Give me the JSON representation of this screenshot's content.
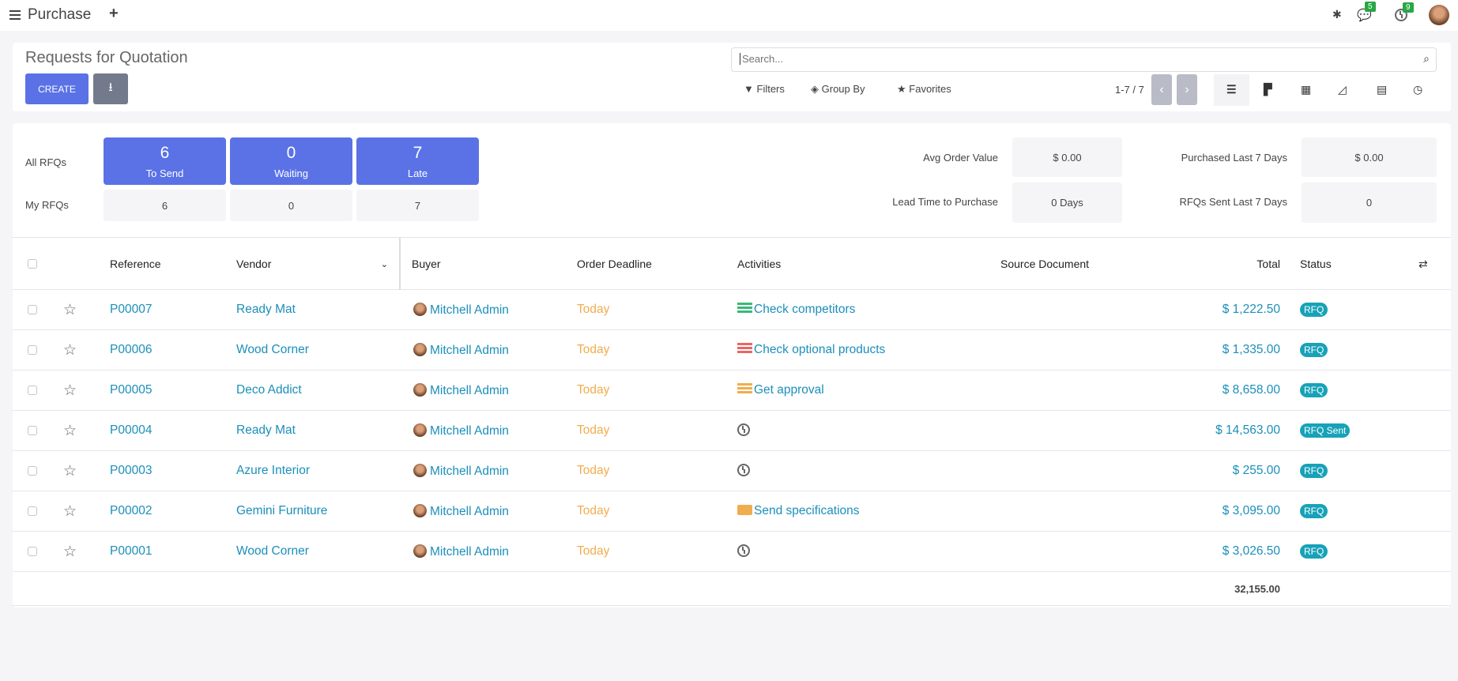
{
  "topbar": {
    "app_title": "Purchase",
    "chat_count": "5",
    "activity_count": "9",
    "icons": [
      "menu-icon",
      "plus-icon",
      "bug-icon",
      "chat-icon",
      "clock-icon",
      "avatar"
    ]
  },
  "control": {
    "title": "Requests for Quotation",
    "create_label": "CREATE",
    "search_placeholder": "Search...",
    "filters": "Filters",
    "group_by": "Group By",
    "favorites": "Favorites",
    "pager": "1-7 / 7",
    "views": [
      "list",
      "kanban",
      "pivot",
      "graph",
      "calendar",
      "activity"
    ]
  },
  "dashboard": {
    "all_label": "All RFQs",
    "my_label": "My RFQs",
    "tiles": [
      {
        "count": "6",
        "label": "To Send",
        "mine": "6"
      },
      {
        "count": "0",
        "label": "Waiting",
        "mine": "0"
      },
      {
        "count": "7",
        "label": "Late",
        "mine": "7"
      }
    ],
    "stats": [
      {
        "label": "Avg Order Value",
        "value": "$ 0.00"
      },
      {
        "label": "Purchased Last 7 Days",
        "value": "$ 0.00"
      },
      {
        "label": "Lead Time to Purchase",
        "value": "0 Days"
      },
      {
        "label": "RFQs Sent Last 7 Days",
        "value": "0"
      }
    ]
  },
  "table": {
    "columns": [
      "Reference",
      "Vendor",
      "Buyer",
      "Order Deadline",
      "Activities",
      "Source Document",
      "Total",
      "Status"
    ],
    "rows": [
      {
        "ref": "P00007",
        "vendor": "Ready Mat",
        "buyer": "Mitchell Admin",
        "deadline": "Today",
        "activity": "Check competitors",
        "activity_icon": "green",
        "total": "$ 1,222.50",
        "status": "RFQ"
      },
      {
        "ref": "P00006",
        "vendor": "Wood Corner",
        "buyer": "Mitchell Admin",
        "deadline": "Today",
        "activity": "Check optional products",
        "activity_icon": "red",
        "total": "$ 1,335.00",
        "status": "RFQ"
      },
      {
        "ref": "P00005",
        "vendor": "Deco Addict",
        "buyer": "Mitchell Admin",
        "deadline": "Today",
        "activity": "Get approval",
        "activity_icon": "orange",
        "total": "$ 8,658.00",
        "status": "RFQ"
      },
      {
        "ref": "P00004",
        "vendor": "Ready Mat",
        "buyer": "Mitchell Admin",
        "deadline": "Today",
        "activity": "",
        "activity_icon": "clock",
        "total": "$ 14,563.00",
        "status": "RFQ Sent"
      },
      {
        "ref": "P00003",
        "vendor": "Azure Interior",
        "buyer": "Mitchell Admin",
        "deadline": "Today",
        "activity": "",
        "activity_icon": "clock",
        "total": "$ 255.00",
        "status": "RFQ"
      },
      {
        "ref": "P00002",
        "vendor": "Gemini Furniture",
        "buyer": "Mitchell Admin",
        "deadline": "Today",
        "activity": "Send specifications",
        "activity_icon": "envelope",
        "total": "$ 3,095.00",
        "status": "RFQ"
      },
      {
        "ref": "P00001",
        "vendor": "Wood Corner",
        "buyer": "Mitchell Admin",
        "deadline": "Today",
        "activity": "",
        "activity_icon": "clock",
        "total": "$ 3,026.50",
        "status": "RFQ"
      }
    ],
    "grand_total": "32,155.00"
  },
  "colors": {
    "primary": "#5a72e6",
    "link": "#1b8fba",
    "today": "#f0ad4e",
    "badge": "#17a2b8",
    "green": "#3cb878",
    "red": "#ef6464",
    "orange": "#f0ad4e"
  }
}
